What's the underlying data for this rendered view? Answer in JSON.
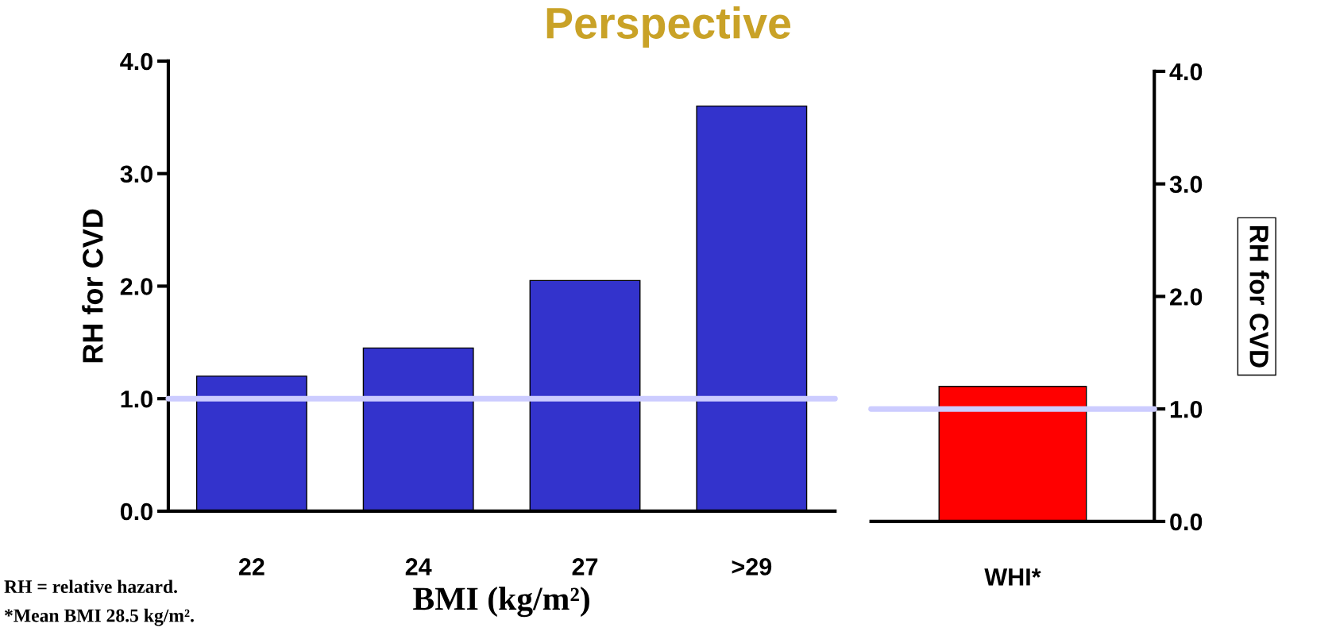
{
  "chart_data": [
    {
      "type": "bar",
      "title": "Perspective",
      "categories": [
        "22",
        "24",
        "27",
        ">29"
      ],
      "values": [
        1.2,
        1.45,
        2.05,
        3.6
      ],
      "color": "#3333cc",
      "ylabel": "RH for CVD",
      "xlabel": "BMI (kg/m²)",
      "ylim": [
        0,
        4
      ],
      "yticks": [
        {
          "value": 0,
          "label": "0.0"
        },
        {
          "value": 1,
          "label": "1.0"
        },
        {
          "value": 2,
          "label": "2.0"
        },
        {
          "value": 3,
          "label": "3.0"
        },
        {
          "value": 4,
          "label": "4.0"
        }
      ],
      "ref_lines": [
        {
          "axis": "y",
          "value": 1,
          "color": "#ccccff"
        }
      ],
      "annotations": [
        "RH = relative hazard.",
        "*Mean BMI 28.5 kg/m²."
      ]
    },
    {
      "type": "bar",
      "categories": [
        "WHI*"
      ],
      "series": [
        {
          "color": "#ff0000",
          "values": [
            1.2
          ],
          "axis": "y2"
        }
      ],
      "y2label": "RH for CVD",
      "y2lim": [
        0,
        4
      ],
      "y2ticks": [
        {
          "value": 0,
          "label": "0.0"
        },
        {
          "value": 1,
          "label": "1.0"
        },
        {
          "value": 2,
          "label": "2.0"
        },
        {
          "value": 3,
          "label": "3.0"
        },
        {
          "value": 4,
          "label": "4.0"
        }
      ],
      "ref_lines": [
        {
          "axis": "y2",
          "value": 1,
          "color": "#ccccff"
        }
      ]
    }
  ]
}
